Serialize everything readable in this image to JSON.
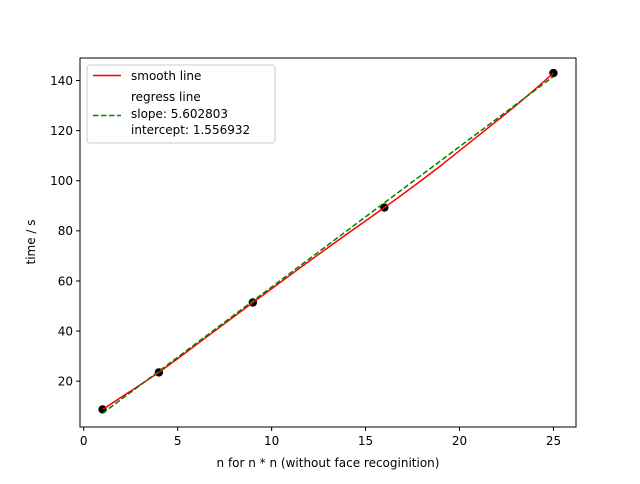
{
  "chart_data": {
    "type": "line",
    "title": "",
    "xlabel": "n for n * n (without face recoginition)",
    "ylabel": "time / s",
    "xlim": [
      -0.2,
      26.2
    ],
    "ylim": [
      1.7,
      149.0
    ],
    "xticks": [
      0,
      5,
      10,
      15,
      20,
      25
    ],
    "yticks": [
      20,
      40,
      60,
      80,
      100,
      120,
      140
    ],
    "grid": false,
    "legend_position": "top-left",
    "points": {
      "x": [
        1,
        4,
        9,
        16,
        25
      ],
      "y": [
        8.7,
        23.5,
        51.4,
        89.3,
        143.0
      ],
      "color": "#000000"
    },
    "series": [
      {
        "name": "smooth line",
        "style": "solid",
        "color": "#ff0000",
        "x": [
          1,
          2,
          3,
          4,
          5,
          6,
          7,
          8,
          9,
          10,
          11,
          12,
          13,
          14,
          15,
          16,
          17,
          18,
          19,
          20,
          21,
          22,
          23,
          24,
          25
        ],
        "y": [
          8.7,
          13.6,
          18.5,
          23.5,
          29.0,
          34.6,
          40.2,
          45.8,
          51.4,
          56.9,
          62.4,
          67.9,
          73.3,
          78.7,
          84.0,
          89.3,
          94.7,
          100.3,
          106.0,
          112.0,
          118.0,
          124.0,
          130.0,
          136.4,
          143.0
        ]
      },
      {
        "name": "regress line",
        "style": "dashed",
        "color": "#008000",
        "x": [
          1,
          25
        ],
        "y": [
          7.159735,
          141.627007
        ]
      }
    ],
    "legend": {
      "entries": [
        {
          "lines": [
            "smooth line"
          ]
        },
        {
          "lines": [
            "regress line",
            "slope: 5.602803",
            "intercept: 1.556932"
          ]
        }
      ]
    }
  }
}
